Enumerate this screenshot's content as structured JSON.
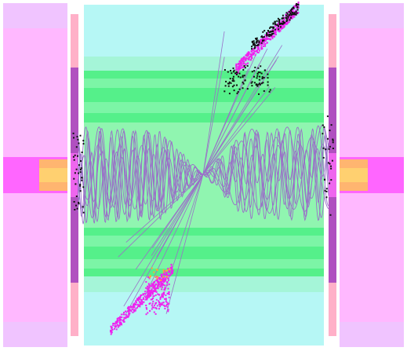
{
  "colors": {
    "background": "#ffffff",
    "endcap_outer": "#ffb8ff",
    "endcap_light": "#f5c2ff",
    "endcap_mid": "#ff66ff",
    "endcap_inner": "#ffb570",
    "strip_pink": "#ffb0c8",
    "strip_purple": "#b050c0",
    "barrel_cyan": "#b6f7f5",
    "barrel_mint": "#9af2c8",
    "barrel_green": "#55f08a",
    "barrel_light": "#7cf5a6",
    "barrel_core": "#90f5b0",
    "track_purple": "#9a70c8",
    "hit_magenta": "#ee22ee",
    "hit_black": "#111111",
    "hit_orange": "#ffaa33"
  },
  "scene": {
    "view": "side",
    "detector_parts": [
      "endcap-left",
      "strip-left",
      "barrel",
      "strip-right",
      "endcap-right"
    ],
    "jets": [
      "jet-upper-right",
      "jet-lower-left"
    ],
    "helix_track_count": 16,
    "straight_track_count": 22
  }
}
